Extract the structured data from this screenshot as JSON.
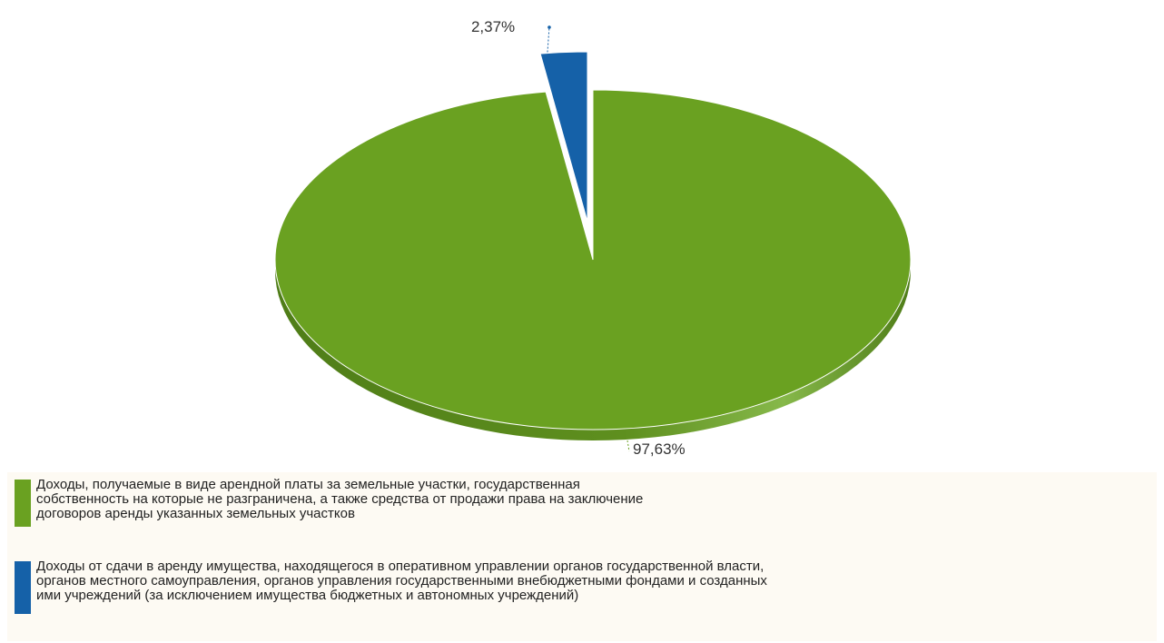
{
  "chart_data": {
    "type": "pie",
    "slices": [
      {
        "label": "Доходы, получаемые в виде арендной платы за земельные участки, государственная\nсобственность на которые не разграничена, а также средства от продажи права на заключение\nдоговоров аренды указанных земельных участков",
        "value": 97.63,
        "value_label": "97,63%",
        "color": "#6aa121"
      },
      {
        "label": "Доходы от сдачи в аренду имущества, находящегося в оперативном управлении органов государственной власти,\nорганов местного самоуправления, органов управления государственными внебюджетными фондами и созданных\nими учреждений (за исключением имущества бюджетных и автономных учреждений)",
        "value": 2.37,
        "value_label": "2,37%",
        "color": "#1561a8"
      }
    ],
    "exploded_slice": 1,
    "legend_position": "bottom"
  }
}
